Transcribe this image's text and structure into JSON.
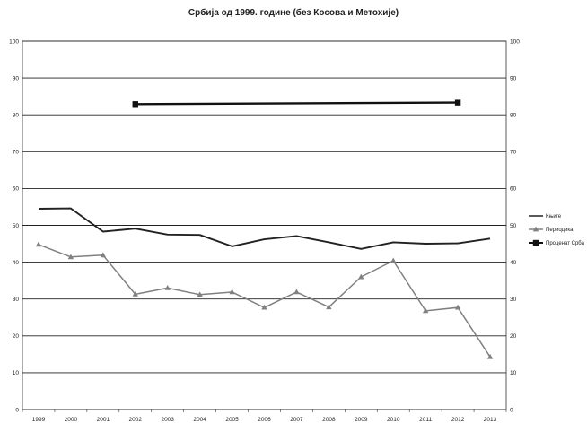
{
  "chart_data": {
    "type": "line",
    "title": "Србија од 1999. године (без Косова и Метохије)",
    "xlabel": "",
    "ylabel": "",
    "ylim": [
      0,
      100
    ],
    "yticks": [
      0,
      10,
      20,
      30,
      40,
      50,
      60,
      70,
      80,
      90,
      100
    ],
    "grid": true,
    "legend_position": "right",
    "categories": [
      "1999",
      "2000",
      "2001",
      "2002",
      "2003",
      "2004",
      "2005",
      "2006",
      "2007",
      "2008",
      "2009",
      "2010",
      "2011",
      "2012",
      "2013"
    ],
    "series": [
      {
        "name": "Књиге",
        "color": "#222222",
        "marker": "none",
        "values": [
          54.5,
          54.6,
          48.3,
          49.1,
          47.5,
          47.4,
          44.3,
          46.2,
          47.1,
          45.4,
          43.6,
          45.4,
          45.0,
          45.1,
          46.4
        ]
      },
      {
        "name": "Периодика",
        "color": "#808080",
        "marker": "triangle",
        "values": [
          44.8,
          41.4,
          41.9,
          31.3,
          33.0,
          31.2,
          31.9,
          27.7,
          31.9,
          27.8,
          36.0,
          40.4,
          26.8,
          27.7,
          14.3
        ]
      },
      {
        "name": "Проценат Срба",
        "color": "#111111",
        "marker": "square",
        "values": [
          null,
          null,
          null,
          82.9,
          null,
          null,
          null,
          null,
          null,
          null,
          null,
          null,
          null,
          83.3,
          null
        ]
      }
    ]
  }
}
